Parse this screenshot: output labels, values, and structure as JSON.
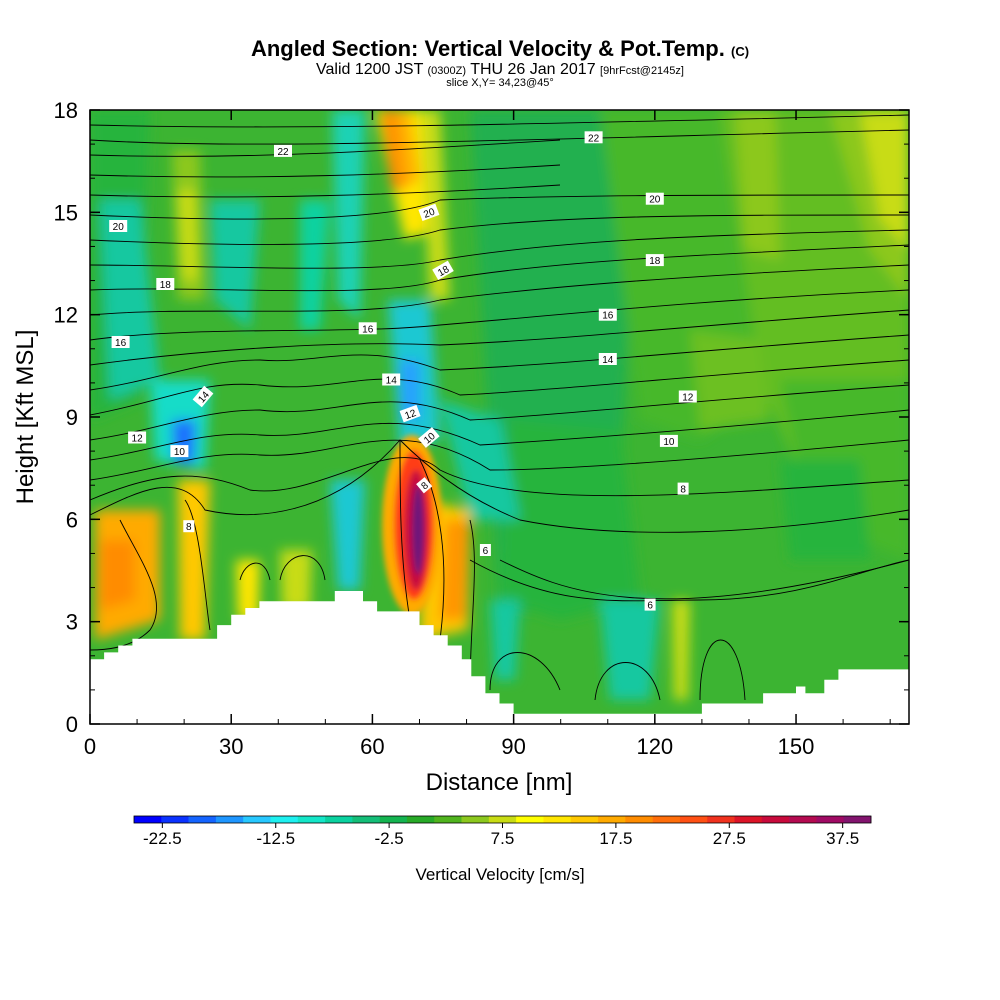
{
  "header": {
    "title": "Angled Section: Vertical Velocity & Pot.Temp.",
    "copyright": "(C)",
    "valid_prefix": "Valid 1200 JST",
    "utc": "(0300Z)",
    "valid_date": "THU 26 Jan 2017",
    "forecast": "[9hrFcst@2145z]",
    "slice": "slice X,Y= 34,23@45°"
  },
  "chart_data": {
    "type": "heatmap",
    "xlabel": "Distance [nm]",
    "ylabel": "Height [Kft MSL]",
    "xlim": [
      0,
      174
    ],
    "ylim": [
      0,
      18
    ],
    "xticks": [
      "0",
      "30",
      "60",
      "90",
      "120",
      "150"
    ],
    "yticks": [
      "0",
      "3",
      "6",
      "9",
      "12",
      "15",
      "18"
    ],
    "colorbar": {
      "label": "Vertical Velocity [cm/s]",
      "tick_labels": [
        "-22.5",
        "-12.5",
        "-2.5",
        "7.5",
        "17.5",
        "27.5",
        "37.5"
      ],
      "min": -25,
      "max": 40,
      "step": 2.5,
      "colors": [
        "#0000ff",
        "#0a32ff",
        "#1464ff",
        "#1e96ff",
        "#28c8ff",
        "#1ef0f0",
        "#14e6c8",
        "#0ad2a0",
        "#14be78",
        "#14b450",
        "#28aa28",
        "#50b41e",
        "#8cc81e",
        "#c8dc14",
        "#ffff00",
        "#ffe600",
        "#ffc800",
        "#ffaa00",
        "#ff8c00",
        "#ff6e0a",
        "#ff5014",
        "#f0321e",
        "#dc1428",
        "#c80a3c",
        "#b40a50",
        "#a00a64",
        "#82146e"
      ]
    },
    "contour_labels": [
      {
        "x": 41,
        "y": 16.8,
        "text": "22",
        "rot": 0
      },
      {
        "x": 107,
        "y": 17.2,
        "text": "22",
        "rot": 0
      },
      {
        "x": 6,
        "y": 14.6,
        "text": "20",
        "rot": 0
      },
      {
        "x": 72,
        "y": 15.0,
        "text": "20",
        "rot": -20
      },
      {
        "x": 120,
        "y": 15.4,
        "text": "20",
        "rot": 0
      },
      {
        "x": 16,
        "y": 12.9,
        "text": "18",
        "rot": 0
      },
      {
        "x": 75,
        "y": 13.3,
        "text": "18",
        "rot": -30
      },
      {
        "x": 120,
        "y": 13.6,
        "text": "18",
        "rot": 0
      },
      {
        "x": 6.5,
        "y": 11.2,
        "text": "16",
        "rot": 0
      },
      {
        "x": 59,
        "y": 11.6,
        "text": "16",
        "rot": 0
      },
      {
        "x": 110,
        "y": 12.0,
        "text": "16",
        "rot": 0
      },
      {
        "x": 24,
        "y": 9.6,
        "text": "14",
        "rot": -50
      },
      {
        "x": 64,
        "y": 10.1,
        "text": "14",
        "rot": 0
      },
      {
        "x": 110,
        "y": 10.7,
        "text": "14",
        "rot": 0
      },
      {
        "x": 10,
        "y": 8.4,
        "text": "12",
        "rot": 0
      },
      {
        "x": 68,
        "y": 9.1,
        "text": "12",
        "rot": -20
      },
      {
        "x": 127,
        "y": 9.6,
        "text": "12",
        "rot": 0
      },
      {
        "x": 19,
        "y": 8.0,
        "text": "10",
        "rot": 0
      },
      {
        "x": 72,
        "y": 8.4,
        "text": "10",
        "rot": -40
      },
      {
        "x": 123,
        "y": 8.3,
        "text": "10",
        "rot": 0
      },
      {
        "x": 21,
        "y": 5.8,
        "text": "8",
        "rot": 0
      },
      {
        "x": 71,
        "y": 7.0,
        "text": "8",
        "rot": -40
      },
      {
        "x": 126,
        "y": 6.9,
        "text": "8",
        "rot": 0
      },
      {
        "x": 84,
        "y": 5.1,
        "text": "6",
        "rot": 0
      },
      {
        "x": 119,
        "y": 3.5,
        "text": "6",
        "rot": 0
      }
    ],
    "terrain": [
      [
        0,
        1.9
      ],
      [
        3,
        1.9
      ],
      [
        3,
        2.1
      ],
      [
        6,
        2.1
      ],
      [
        6,
        2.3
      ],
      [
        9,
        2.3
      ],
      [
        9,
        2.5
      ],
      [
        27,
        2.5
      ],
      [
        27,
        2.9
      ],
      [
        30,
        2.9
      ],
      [
        30,
        3.2
      ],
      [
        33,
        3.2
      ],
      [
        33,
        3.4
      ],
      [
        36,
        3.4
      ],
      [
        36,
        3.6
      ],
      [
        52,
        3.6
      ],
      [
        52,
        3.9
      ],
      [
        58,
        3.9
      ],
      [
        58,
        3.6
      ],
      [
        61,
        3.6
      ],
      [
        61,
        3.3
      ],
      [
        70,
        3.3
      ],
      [
        70,
        2.9
      ],
      [
        73,
        2.9
      ],
      [
        73,
        2.6
      ],
      [
        76,
        2.6
      ],
      [
        76,
        2.3
      ],
      [
        79,
        2.3
      ],
      [
        79,
        1.9
      ],
      [
        81,
        1.9
      ],
      [
        81,
        1.4
      ],
      [
        84,
        1.4
      ],
      [
        84,
        0.9
      ],
      [
        87,
        0.9
      ],
      [
        87,
        0.6
      ],
      [
        90,
        0.6
      ],
      [
        90,
        0.3
      ],
      [
        130,
        0.3
      ],
      [
        130,
        0.6
      ],
      [
        143,
        0.6
      ],
      [
        143,
        0.9
      ],
      [
        150,
        0.9
      ],
      [
        150,
        1.1
      ],
      [
        152,
        1.1
      ],
      [
        152,
        0.9
      ],
      [
        156,
        0.9
      ],
      [
        156,
        1.3
      ],
      [
        159,
        1.3
      ],
      [
        159,
        1.6
      ],
      [
        174,
        1.6
      ]
    ]
  }
}
